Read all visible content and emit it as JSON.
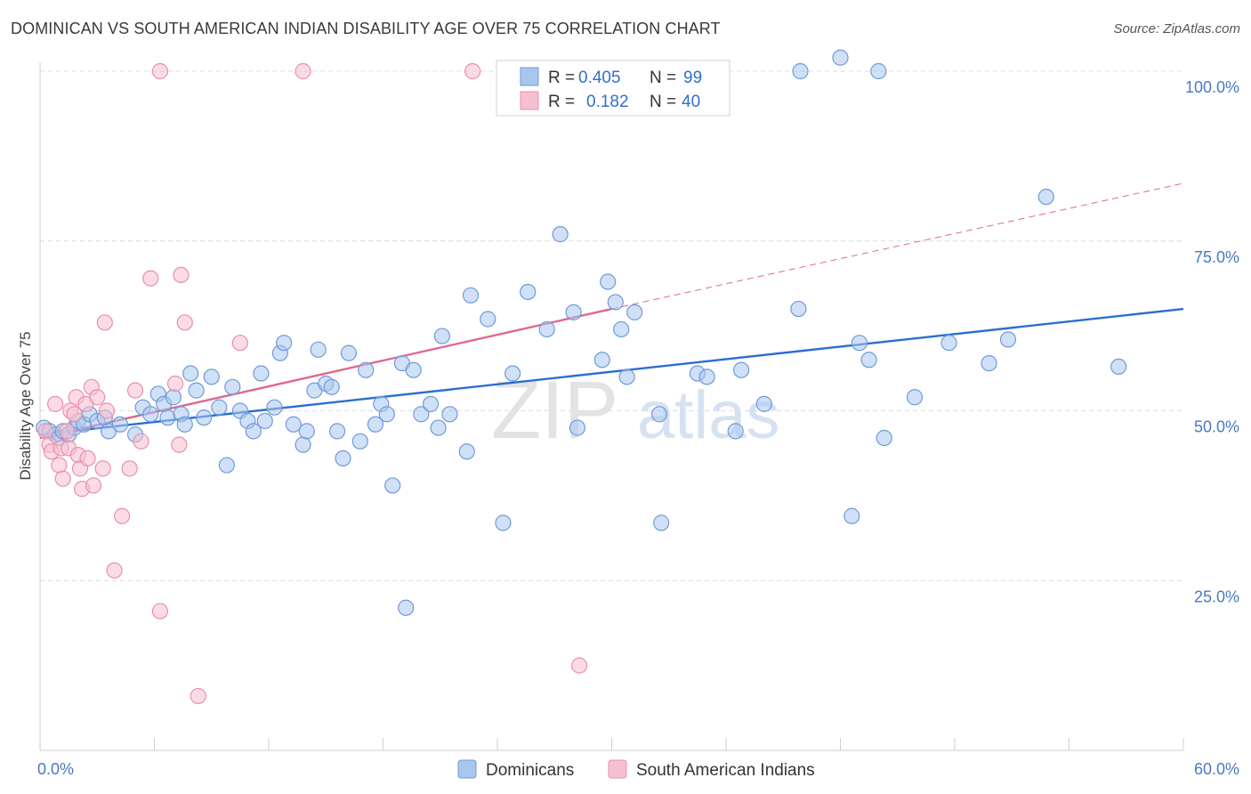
{
  "title": "DOMINICAN VS SOUTH AMERICAN INDIAN DISABILITY AGE OVER 75 CORRELATION CHART",
  "source": "Source: ZipAtlas.com",
  "watermark": {
    "zip": "ZIP",
    "atlas": "atlas"
  },
  "colors": {
    "blue_fill": "#a9c6ef",
    "blue_stroke": "#6f9bd8",
    "blue_line": "#2a6fd0",
    "pink_fill": "#f7c0d0",
    "pink_stroke": "#ea8fac",
    "pink_line": "#e0688f",
    "grid": "#dcdcdc",
    "tick_label": "#4a78c2"
  },
  "legend_box": {
    "rows": [
      {
        "r_label": "R =",
        "r_value": "0.405",
        "n_label": "N =",
        "n_value": "99",
        "color": "blue"
      },
      {
        "r_label": "R =",
        "r_value": "0.182",
        "n_label": "N =",
        "n_value": "40",
        "color": "pink"
      }
    ]
  },
  "bottom_legend": [
    {
      "label": "Dominicans",
      "color": "blue"
    },
    {
      "label": "South American Indians",
      "color": "pink"
    }
  ],
  "chart_data": {
    "type": "scatter",
    "title": "DOMINICAN VS SOUTH AMERICAN INDIAN DISABILITY AGE OVER 75 CORRELATION CHART",
    "xlabel": "",
    "ylabel": "Disability Age Over 75",
    "xlim": [
      0,
      60
    ],
    "ylim": [
      0,
      102
    ],
    "x_tick_labels": [
      {
        "value": 0,
        "label": "0.0%"
      },
      {
        "value": 60,
        "label": "60.0%"
      }
    ],
    "y_tick_labels": [
      {
        "value": 25,
        "label": "25.0%"
      },
      {
        "value": 50,
        "label": "50.0%"
      },
      {
        "value": 75,
        "label": "75.0%"
      },
      {
        "value": 100,
        "label": "100.0%"
      }
    ],
    "grid": true,
    "legend_position": "top-center",
    "series": [
      {
        "name": "Dominicans",
        "color": "blue",
        "trend": {
          "x0": 0,
          "y0": 46.5,
          "x1": 60,
          "y1": 65.0
        },
        "points": [
          [
            0.2,
            47.5
          ],
          [
            0.5,
            47
          ],
          [
            0.8,
            46.5
          ],
          [
            1.0,
            46
          ],
          [
            1.2,
            47
          ],
          [
            1.5,
            46.5
          ],
          [
            1.8,
            47.5
          ],
          [
            2.0,
            48.5
          ],
          [
            2.3,
            48
          ],
          [
            2.6,
            49.5
          ],
          [
            3.0,
            48.5
          ],
          [
            3.4,
            49
          ],
          [
            3.6,
            47
          ],
          [
            4.2,
            48
          ],
          [
            5.0,
            46.5
          ],
          [
            5.4,
            50.5
          ],
          [
            5.8,
            49.5
          ],
          [
            6.2,
            52.5
          ],
          [
            6.5,
            51
          ],
          [
            6.7,
            49
          ],
          [
            7.0,
            52
          ],
          [
            7.4,
            49.5
          ],
          [
            7.6,
            48
          ],
          [
            7.9,
            55.5
          ],
          [
            8.2,
            53
          ],
          [
            8.6,
            49
          ],
          [
            9.0,
            55
          ],
          [
            9.4,
            50.5
          ],
          [
            9.8,
            42
          ],
          [
            10.1,
            53.5
          ],
          [
            10.5,
            50
          ],
          [
            10.9,
            48.5
          ],
          [
            11.2,
            47
          ],
          [
            11.6,
            55.5
          ],
          [
            11.8,
            48.5
          ],
          [
            12.3,
            50.5
          ],
          [
            12.6,
            58.5
          ],
          [
            12.8,
            60
          ],
          [
            13.3,
            48
          ],
          [
            13.8,
            45
          ],
          [
            14.0,
            47
          ],
          [
            14.4,
            53
          ],
          [
            14.6,
            59
          ],
          [
            15.0,
            54
          ],
          [
            15.3,
            53.5
          ],
          [
            15.6,
            47
          ],
          [
            15.9,
            43
          ],
          [
            16.2,
            58.5
          ],
          [
            16.8,
            45.5
          ],
          [
            17.1,
            56
          ],
          [
            17.6,
            48
          ],
          [
            17.9,
            51
          ],
          [
            18.2,
            49.5
          ],
          [
            18.5,
            39
          ],
          [
            19.0,
            57
          ],
          [
            19.2,
            21
          ],
          [
            19.6,
            56
          ],
          [
            20.0,
            49.5
          ],
          [
            20.5,
            51
          ],
          [
            20.9,
            47.5
          ],
          [
            21.1,
            61
          ],
          [
            21.5,
            49.5
          ],
          [
            22.4,
            44
          ],
          [
            22.6,
            67
          ],
          [
            23.5,
            63.5
          ],
          [
            24.3,
            33.5
          ],
          [
            24.8,
            55.5
          ],
          [
            25.6,
            67.5
          ],
          [
            26.6,
            62
          ],
          [
            27.3,
            76
          ],
          [
            28.0,
            64.5
          ],
          [
            28.2,
            47.5
          ],
          [
            29.5,
            57.5
          ],
          [
            29.8,
            69
          ],
          [
            30.2,
            66
          ],
          [
            30.5,
            62
          ],
          [
            30.8,
            55
          ],
          [
            31.2,
            64.5
          ],
          [
            32.5,
            49.5
          ],
          [
            32.6,
            33.5
          ],
          [
            34.5,
            55.5
          ],
          [
            35.0,
            55
          ],
          [
            36.5,
            47
          ],
          [
            36.8,
            56
          ],
          [
            38.0,
            51
          ],
          [
            39.8,
            65
          ],
          [
            42.6,
            34.5
          ],
          [
            43.0,
            60
          ],
          [
            43.5,
            57.5
          ],
          [
            44.3,
            46
          ],
          [
            45.9,
            52
          ],
          [
            47.7,
            60
          ],
          [
            49.8,
            57
          ],
          [
            50.8,
            60.5
          ],
          [
            52.8,
            81.5
          ],
          [
            56.6,
            56.5
          ],
          [
            39.9,
            100
          ],
          [
            44.0,
            100
          ],
          [
            42.0,
            102
          ]
        ]
      },
      {
        "name": "South American Indians",
        "color": "pink",
        "trend": {
          "x0": 0,
          "y0": 46.0,
          "x1": 30,
          "y1": 65.0,
          "dash_x1": 60,
          "dash_y1": 83.5
        },
        "points": [
          [
            0.3,
            47
          ],
          [
            0.5,
            45
          ],
          [
            0.6,
            44
          ],
          [
            0.8,
            51
          ],
          [
            1.0,
            42
          ],
          [
            1.1,
            44.5
          ],
          [
            1.2,
            40
          ],
          [
            1.4,
            47
          ],
          [
            1.5,
            44.5
          ],
          [
            1.6,
            50
          ],
          [
            1.8,
            49.5
          ],
          [
            1.9,
            52
          ],
          [
            2.0,
            43.5
          ],
          [
            2.1,
            41.5
          ],
          [
            2.2,
            38.5
          ],
          [
            2.4,
            51
          ],
          [
            2.5,
            43
          ],
          [
            2.7,
            53.5
          ],
          [
            2.8,
            39
          ],
          [
            3.0,
            52
          ],
          [
            3.3,
            41.5
          ],
          [
            3.4,
            63
          ],
          [
            3.9,
            26.5
          ],
          [
            4.3,
            34.5
          ],
          [
            4.7,
            41.5
          ],
          [
            5.0,
            53
          ],
          [
            5.3,
            45.5
          ],
          [
            5.8,
            69.5
          ],
          [
            6.3,
            20.5
          ],
          [
            7.1,
            54
          ],
          [
            7.3,
            45
          ],
          [
            7.4,
            70
          ],
          [
            7.6,
            63
          ],
          [
            8.3,
            8
          ],
          [
            10.5,
            60
          ],
          [
            6.3,
            100
          ],
          [
            13.8,
            100
          ],
          [
            22.7,
            100
          ],
          [
            28.3,
            12.5
          ],
          [
            3.5,
            50
          ]
        ]
      }
    ]
  }
}
